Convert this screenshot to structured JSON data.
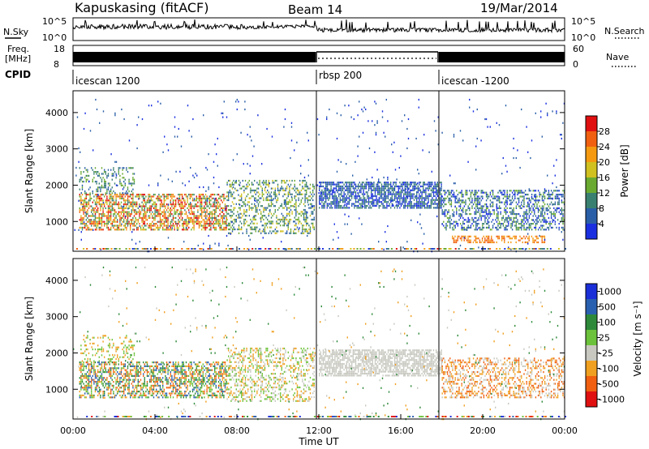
{
  "header": {
    "station": "Kapuskasing (fitACF)",
    "beam": "Beam 14",
    "date": "19/Mar/2014"
  },
  "top_panels": {
    "nsky_label": "N.Sky",
    "nsky_ticks": [
      "10^5",
      "10^0"
    ],
    "nsearch_label": "N.Search",
    "nsearch_ticks": [
      "10^5",
      "10^0"
    ],
    "freq_label_1": "Freq.",
    "freq_label_2": "[MHz]",
    "freq_ticks": [
      "18",
      "8"
    ],
    "nave_label": "Nave",
    "nave_ticks": [
      "60",
      "0"
    ],
    "cpid_label": "CPID",
    "cpid_segments": [
      {
        "label": "icescan 1200",
        "start_hour": 0
      },
      {
        "label": "rbsp 200",
        "start_hour": 12
      },
      {
        "label": "icescan -1200",
        "start_hour": 18
      }
    ]
  },
  "chart_data": [
    {
      "type": "heatmap",
      "name": "power-panel",
      "ylabel": "Slant Range [km]",
      "ylim": [
        180,
        4600
      ],
      "yticks": [
        "1000",
        "2000",
        "3000",
        "4000"
      ],
      "xlim": [
        0,
        24
      ],
      "colorbar_label": "Power [dB]",
      "colorbar_ticks": [
        "4",
        "8",
        "12",
        "16",
        "20",
        "24",
        "28"
      ],
      "colors": [
        "#1a2fe0",
        "#2a5fa8",
        "#3a8070",
        "#6aaa30",
        "#d0c020",
        "#f59a10",
        "#f06010",
        "#e01010"
      ],
      "bands": [
        {
          "t0": 0.3,
          "t1": 7.5,
          "r0": 800,
          "r1": 1800,
          "density": 0.6,
          "levels": [
            2,
            3,
            4,
            5,
            6,
            7
          ]
        },
        {
          "t0": 0.3,
          "t1": 3.0,
          "r0": 1800,
          "r1": 2500,
          "density": 0.25,
          "levels": [
            1,
            2,
            3
          ]
        },
        {
          "t0": 7.5,
          "t1": 11.8,
          "r0": 700,
          "r1": 2200,
          "density": 0.35,
          "levels": [
            1,
            2,
            3,
            4
          ]
        },
        {
          "t0": 12.0,
          "t1": 18.0,
          "r0": 1400,
          "r1": 2100,
          "density": 0.7,
          "levels": [
            0,
            1,
            2
          ]
        },
        {
          "t0": 18.0,
          "t1": 24.0,
          "r0": 800,
          "r1": 1900,
          "density": 0.45,
          "levels": [
            0,
            1,
            2,
            3
          ]
        },
        {
          "t0": 18.5,
          "t1": 23.0,
          "r0": 450,
          "r1": 650,
          "density": 0.5,
          "levels": [
            5,
            6
          ]
        },
        {
          "t0": 0.0,
          "t1": 24.0,
          "r0": 200,
          "r1": 4400,
          "density": 0.015,
          "levels": [
            0,
            1
          ]
        }
      ]
    },
    {
      "type": "heatmap",
      "name": "velocity-panel",
      "ylabel": "Slant Range [km]",
      "ylim": [
        180,
        4600
      ],
      "yticks": [
        "1000",
        "2000",
        "3000",
        "4000"
      ],
      "xlabel": "Time UT",
      "xlim": [
        0,
        24
      ],
      "xticks": [
        "00:00",
        "04:00",
        "08:00",
        "12:00",
        "16:00",
        "20:00",
        "00:00"
      ],
      "colorbar_label": "Velocity [m s⁻¹]",
      "colorbar_ticks": [
        "1000",
        "500",
        "100",
        "25",
        "-25",
        "-100",
        "-500",
        "-1000"
      ],
      "colors": [
        "#1a2fd8",
        "#2a60b0",
        "#2e8a3a",
        "#6cc23a",
        "#c8c8c0",
        "#f0a020",
        "#f06010",
        "#e01010"
      ],
      "bands": [
        {
          "t0": 0.3,
          "t1": 7.5,
          "r0": 800,
          "r1": 1800,
          "density": 0.55,
          "levels": [
            1,
            2,
            3,
            5,
            6
          ]
        },
        {
          "t0": 0.3,
          "t1": 3.0,
          "r0": 1800,
          "r1": 2500,
          "density": 0.2,
          "levels": [
            3,
            5
          ]
        },
        {
          "t0": 7.5,
          "t1": 11.8,
          "r0": 700,
          "r1": 2200,
          "density": 0.35,
          "levels": [
            3,
            4,
            5
          ]
        },
        {
          "t0": 12.0,
          "t1": 18.0,
          "r0": 1400,
          "r1": 2100,
          "density": 0.7,
          "levels": [
            4
          ]
        },
        {
          "t0": 18.0,
          "t1": 24.0,
          "r0": 800,
          "r1": 1900,
          "density": 0.4,
          "levels": [
            4,
            5,
            6
          ]
        },
        {
          "t0": 0.0,
          "t1": 24.0,
          "r0": 200,
          "r1": 4400,
          "density": 0.015,
          "levels": [
            2,
            4,
            5
          ]
        }
      ]
    }
  ]
}
